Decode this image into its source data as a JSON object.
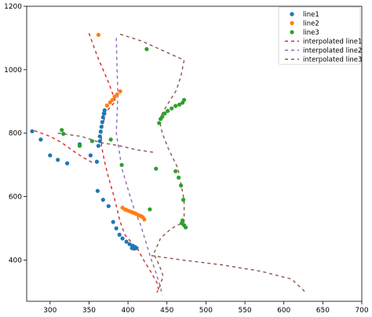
{
  "chart_data": {
    "type": "scatter",
    "title": "",
    "xlabel": "",
    "ylabel": "",
    "xlim": [
      270,
      700
    ],
    "ylim": [
      270,
      1200
    ],
    "xticks": [
      300,
      350,
      400,
      450,
      500,
      550,
      600,
      650,
      700
    ],
    "yticks": [
      400,
      600,
      800,
      1000,
      1200
    ],
    "grid": false,
    "legend_position": "top-right",
    "series": [
      {
        "name": "line1",
        "kind": "scatter",
        "color": "#1f77b4",
        "points": [
          [
            277,
            806
          ],
          [
            288,
            780
          ],
          [
            300,
            730
          ],
          [
            310,
            716
          ],
          [
            322,
            705
          ],
          [
            338,
            765
          ],
          [
            352,
            730
          ],
          [
            360,
            710
          ],
          [
            362,
            760
          ],
          [
            364,
            775
          ],
          [
            364,
            790
          ],
          [
            365,
            805
          ],
          [
            366,
            820
          ],
          [
            367,
            835
          ],
          [
            368,
            850
          ],
          [
            369,
            862
          ],
          [
            370,
            872
          ],
          [
            361,
            618
          ],
          [
            368,
            590
          ],
          [
            375,
            570
          ],
          [
            381,
            520
          ],
          [
            385,
            500
          ],
          [
            389,
            480
          ],
          [
            393,
            468
          ],
          [
            398,
            458
          ],
          [
            402,
            450
          ],
          [
            406,
            445
          ],
          [
            409,
            441
          ],
          [
            411,
            438
          ],
          [
            408,
            436
          ],
          [
            405,
            438
          ]
        ]
      },
      {
        "name": "line2",
        "kind": "scatter",
        "color": "#ff7f0e",
        "points": [
          [
            362,
            1110
          ],
          [
            373,
            887
          ],
          [
            377,
            897
          ],
          [
            380,
            905
          ],
          [
            383,
            915
          ],
          [
            386,
            922
          ],
          [
            390,
            932
          ],
          [
            393,
            565
          ],
          [
            396,
            560
          ],
          [
            398,
            558
          ],
          [
            401,
            555
          ],
          [
            404,
            552
          ],
          [
            407,
            549
          ],
          [
            410,
            546
          ],
          [
            413,
            542
          ],
          [
            415,
            540
          ],
          [
            417,
            538
          ],
          [
            419,
            535
          ],
          [
            421,
            528
          ]
        ]
      },
      {
        "name": "line3",
        "kind": "scatter",
        "color": "#2ca02c",
        "points": [
          [
            315,
            810
          ],
          [
            317,
            798
          ],
          [
            338,
            760
          ],
          [
            354,
            775
          ],
          [
            378,
            780
          ],
          [
            392,
            700
          ],
          [
            424,
            1065
          ],
          [
            428,
            560
          ],
          [
            436,
            688
          ],
          [
            440,
            832
          ],
          [
            442,
            845
          ],
          [
            444,
            852
          ],
          [
            447,
            862
          ],
          [
            451,
            870
          ],
          [
            456,
            878
          ],
          [
            461,
            886
          ],
          [
            466,
            890
          ],
          [
            470,
            896
          ],
          [
            472,
            905
          ],
          [
            461,
            680
          ],
          [
            465,
            660
          ],
          [
            468,
            635
          ],
          [
            471,
            590
          ],
          [
            470,
            525
          ],
          [
            469,
            516
          ],
          [
            472,
            510
          ],
          [
            474,
            503
          ]
        ]
      },
      {
        "name": "interpolated line1",
        "kind": "dashed",
        "color": "#d62728",
        "polylines": [
          [
            [
              350,
              1115
            ],
            [
              361,
              1040
            ],
            [
              375,
              960
            ],
            [
              384,
              900
            ],
            [
              372,
              868
            ],
            [
              366,
              810
            ],
            [
              366,
              760
            ],
            [
              370,
              710
            ],
            [
              375,
              660
            ],
            [
              381,
              610
            ],
            [
              385,
              570
            ],
            [
              390,
              520
            ],
            [
              396,
              480
            ],
            [
              403,
              460
            ],
            [
              408,
              445
            ],
            [
              411,
              441
            ],
            [
              420,
              400
            ],
            [
              430,
              360
            ],
            [
              437,
              330
            ],
            [
              440,
              300
            ]
          ],
          [
            [
              280,
              808
            ],
            [
              300,
              790
            ],
            [
              315,
              770
            ],
            [
              332,
              740
            ],
            [
              345,
              720
            ],
            [
              356,
              705
            ]
          ]
        ]
      },
      {
        "name": "interpolated line2",
        "kind": "dashed",
        "color": "#9467bd",
        "polylines": [
          [
            [
              385,
              1100
            ],
            [
              386,
              1000
            ],
            [
              387,
              920
            ],
            [
              386,
              860
            ],
            [
              385,
              800
            ],
            [
              389,
              740
            ],
            [
              392,
              690
            ],
            [
              398,
              640
            ],
            [
              404,
              590
            ],
            [
              410,
              545
            ],
            [
              415,
              520
            ],
            [
              420,
              480
            ],
            [
              425,
              440
            ],
            [
              430,
              400
            ],
            [
              436,
              360
            ],
            [
              441,
              320
            ],
            [
              444,
              290
            ]
          ]
        ]
      },
      {
        "name": "interpolated line3",
        "kind": "dashed",
        "color": "#8c564b",
        "polylines": [
          [
            [
              390,
              1112
            ],
            [
              418,
              1090
            ],
            [
              445,
              1060
            ],
            [
              472,
              1030
            ],
            [
              468,
              980
            ],
            [
              462,
              935
            ],
            [
              448,
              880
            ],
            [
              440,
              845
            ],
            [
              444,
              800
            ],
            [
              452,
              750
            ],
            [
              464,
              690
            ],
            [
              468,
              640
            ],
            [
              472,
              590
            ],
            [
              472,
              520
            ],
            [
              456,
              500
            ],
            [
              442,
              470
            ],
            [
              433,
              420
            ],
            [
              440,
              385
            ],
            [
              445,
              350
            ],
            [
              440,
              310
            ],
            [
              437,
              298
            ]
          ],
          [
            [
              310,
              800
            ],
            [
              340,
              790
            ],
            [
              365,
              770
            ],
            [
              390,
              760
            ],
            [
              410,
              748
            ],
            [
              432,
              740
            ]
          ],
          [
            [
              430,
              414
            ],
            [
              470,
              400
            ],
            [
              520,
              385
            ],
            [
              570,
              365
            ],
            [
              610,
              340
            ],
            [
              628,
              298
            ]
          ]
        ]
      }
    ]
  }
}
